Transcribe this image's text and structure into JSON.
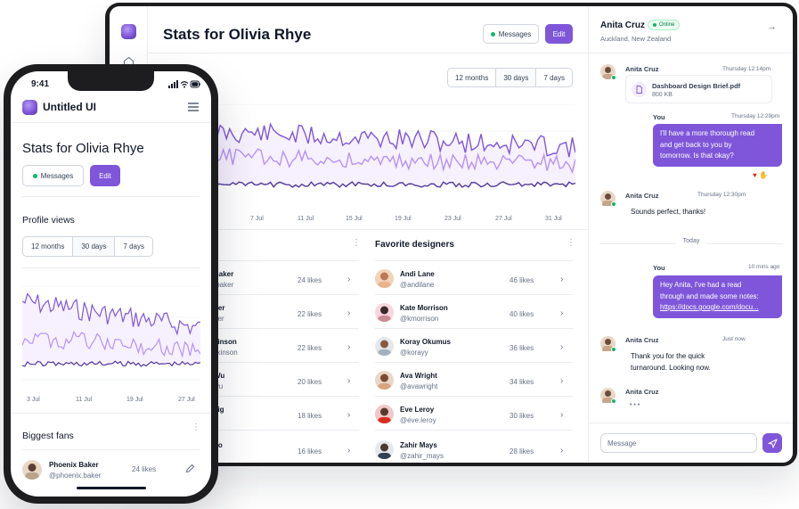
{
  "tablet": {
    "title": "Stats for Olivia Rhye",
    "messages_button": "Messages",
    "edit_button": "Edit",
    "range": [
      "12 months",
      "30 days",
      "7 days"
    ],
    "range_active": "30 days",
    "section_label_partial": "s",
    "axis_dates": [
      "7 Jul",
      "11 Jul",
      "15 Jul",
      "19 Jul",
      "23 Jul",
      "27 Jul",
      "31 Jul"
    ],
    "fans_partial": [
      {
        "name": "Baker",
        "handle": ".baker",
        "likes": "24 likes"
      },
      {
        "name": "ner",
        "handle": "ner",
        "likes": "22 likes"
      },
      {
        "name": "kinson",
        "handle": "ilkinson",
        "likes": "22 likes"
      },
      {
        "name": "Wu",
        "handle": "wu",
        "likes": "20 likes"
      },
      {
        "name": "aig",
        "handle": "g",
        "likes": "18 likes"
      },
      {
        "name": "no",
        "handle": "",
        "likes": "16 likes"
      }
    ],
    "favorites_title": "Favorite designers",
    "favorites": [
      {
        "name": "Andi Lane",
        "handle": "@andilane",
        "likes": "46 likes"
      },
      {
        "name": "Kate Morrison",
        "handle": "@kmorrison",
        "likes": "40 likes"
      },
      {
        "name": "Koray Okumus",
        "handle": "@korayy",
        "likes": "36 likes"
      },
      {
        "name": "Ava Wright",
        "handle": "@avawright",
        "likes": "34 likes"
      },
      {
        "name": "Eve Leroy",
        "handle": "@eve.leroy",
        "likes": "30 likes"
      },
      {
        "name": "Zahir Mays",
        "handle": "@zahir_mays",
        "likes": "28 likes"
      }
    ]
  },
  "chat": {
    "contact_name": "Anita Cruz",
    "status": "Online",
    "location": "Auckland, New Zealand",
    "messages": {
      "m1_sender": "Anita Cruz",
      "m1_time": "Thursday 12:14pm",
      "file_name": "Dashboard Design Brief.pdf",
      "file_size": "800 KB",
      "m2_sender": "You",
      "m2_time": "Thursday 12:29pm",
      "m2_line1": "I'll have a more thorough read",
      "m2_line2": "and get back to you by",
      "m2_line3": "tomorrow. Is that okay?",
      "m3_sender": "Anita Cruz",
      "m3_time": "Thursday 12:30pm",
      "m3_text": "Sounds perfect, thanks!",
      "divider": "Today",
      "m4_sender": "You",
      "m4_time": "10 mins ago",
      "m4_line1": "Hey Anita, I've had a read",
      "m4_line2": "through and made some notes:",
      "m4_link": "https://docs.google.com/docu...",
      "m5_sender": "Anita Cruz",
      "m5_time": "Just now",
      "m5_line1": "Thank you for the quick",
      "m5_line2": "turnaround. Looking now.",
      "m6_sender": "Anita Cruz",
      "typing": "• • •"
    },
    "input_placeholder": "Message"
  },
  "phone": {
    "time": "9:41",
    "brand": "Untitled UI",
    "title": "Stats for Olivia Rhye",
    "messages_button": "Messages",
    "edit_button": "Edit",
    "profile_views": "Profile views",
    "range": [
      "12 months",
      "30 days",
      "7 days"
    ],
    "axis_dates": [
      "3 Jul",
      "11 Jul",
      "19 Jul",
      "27 Jul"
    ],
    "biggest_fans": "Biggest fans",
    "fan": {
      "name": "Phoenix Baker",
      "handle": "@phoenix.baker",
      "likes": "24 likes"
    }
  },
  "colors": {
    "brand": "#7f56d9",
    "brand_light": "#b692f6",
    "online": "#12b76a"
  }
}
